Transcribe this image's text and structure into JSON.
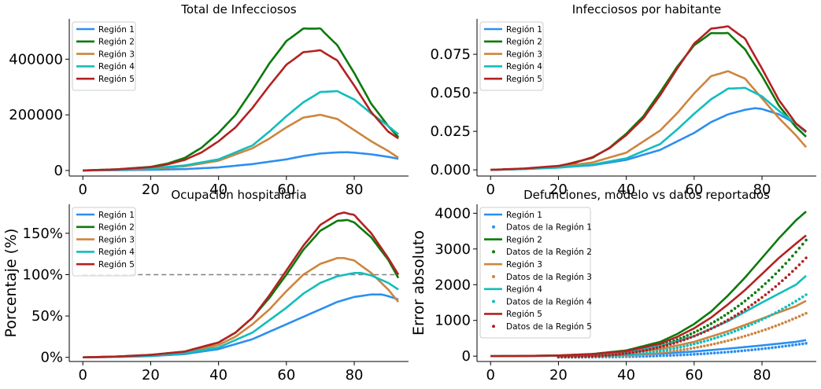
{
  "chart_data": [
    {
      "type": "line",
      "title": "Total de Infecciosos",
      "ylabel": "",
      "xlim": [
        -4,
        96
      ],
      "ylim": [
        -20000,
        545000
      ],
      "xticks": [
        0,
        20,
        40,
        60,
        80
      ],
      "yticks": [
        0,
        200000,
        400000
      ],
      "ytick_format": "int",
      "legend": "upper-left",
      "series": [
        {
          "name": "Región 1",
          "color": "#2b8ff0",
          "x": [
            0,
            10,
            20,
            30,
            40,
            50,
            60,
            65,
            70,
            75,
            78,
            80,
            85,
            90,
            93
          ],
          "y": [
            0,
            1000,
            2500,
            5000,
            11000,
            23000,
            40000,
            52000,
            61000,
            65000,
            65500,
            64000,
            58000,
            49000,
            42000
          ]
        },
        {
          "name": "Región 2",
          "color": "#0b7a0b",
          "x": [
            0,
            10,
            20,
            25,
            30,
            35,
            40,
            45,
            50,
            55,
            60,
            65,
            70,
            75,
            80,
            85,
            90,
            93
          ],
          "y": [
            0,
            4000,
            13000,
            25000,
            45000,
            82000,
            135000,
            200000,
            290000,
            385000,
            465000,
            510000,
            510000,
            450000,
            350000,
            240000,
            160000,
            120000
          ]
        },
        {
          "name": "Región 3",
          "color": "#cd853f",
          "x": [
            0,
            10,
            20,
            30,
            40,
            50,
            55,
            60,
            65,
            70,
            75,
            80,
            85,
            90,
            93
          ],
          "y": [
            0,
            2000,
            6000,
            15000,
            35000,
            80000,
            115000,
            155000,
            190000,
            200000,
            185000,
            145000,
            105000,
            70000,
            46000
          ]
        },
        {
          "name": "Región 4",
          "color": "#12bdbd",
          "x": [
            0,
            10,
            20,
            30,
            40,
            50,
            55,
            60,
            65,
            70,
            75,
            80,
            85,
            90,
            93
          ],
          "y": [
            0,
            2500,
            8000,
            18000,
            40000,
            90000,
            140000,
            195000,
            245000,
            282000,
            285000,
            255000,
            205000,
            160000,
            130000
          ]
        },
        {
          "name": "Región 5",
          "color": "#b22222",
          "x": [
            0,
            10,
            20,
            25,
            30,
            35,
            40,
            45,
            50,
            55,
            60,
            65,
            70,
            75,
            80,
            85,
            90,
            93
          ],
          "y": [
            0,
            4000,
            12000,
            22000,
            38000,
            65000,
            105000,
            155000,
            225000,
            305000,
            380000,
            425000,
            432000,
            395000,
            305000,
            210000,
            140000,
            115000
          ]
        }
      ]
    },
    {
      "type": "line",
      "title": "Infecciosos por habitante",
      "ylabel": "",
      "xlim": [
        -4,
        96
      ],
      "ylim": [
        -0.004,
        0.098
      ],
      "xticks": [
        0,
        20,
        40,
        60,
        80
      ],
      "yticks": [
        0.0,
        0.025,
        0.05,
        0.075
      ],
      "ytick_format": "3dec",
      "legend": "upper-left",
      "series": [
        {
          "name": "Región 1",
          "color": "#2b8ff0",
          "x": [
            0,
            10,
            20,
            30,
            40,
            50,
            60,
            65,
            70,
            75,
            78,
            80,
            85,
            90,
            93
          ],
          "y": [
            0,
            0.0006,
            0.0015,
            0.003,
            0.0065,
            0.013,
            0.024,
            0.031,
            0.036,
            0.039,
            0.04,
            0.0395,
            0.036,
            0.03,
            0.025
          ]
        },
        {
          "name": "Región 2",
          "color": "#0b7a0b",
          "x": [
            0,
            10,
            20,
            30,
            35,
            40,
            45,
            50,
            55,
            60,
            65,
            70,
            75,
            80,
            85,
            90,
            93
          ],
          "y": [
            0,
            0.0007,
            0.0023,
            0.0078,
            0.0143,
            0.0235,
            0.0347,
            0.0504,
            0.0669,
            0.0808,
            0.0887,
            0.0887,
            0.0782,
            0.0609,
            0.0417,
            0.0278,
            0.0215
          ]
        },
        {
          "name": "Región 3",
          "color": "#cd853f",
          "x": [
            0,
            10,
            20,
            30,
            40,
            50,
            55,
            60,
            65,
            70,
            75,
            80,
            85,
            90,
            93
          ],
          "y": [
            0,
            0.0006,
            0.0019,
            0.0048,
            0.0112,
            0.0256,
            0.0368,
            0.0496,
            0.0608,
            0.064,
            0.0592,
            0.0464,
            0.0336,
            0.0224,
            0.0147
          ]
        },
        {
          "name": "Región 4",
          "color": "#12bdbd",
          "x": [
            0,
            10,
            20,
            30,
            40,
            50,
            55,
            60,
            65,
            70,
            75,
            80,
            85,
            90,
            93
          ],
          "y": [
            0,
            0.0005,
            0.0015,
            0.0034,
            0.0075,
            0.0168,
            0.0262,
            0.0364,
            0.0458,
            0.0527,
            0.0532,
            0.0477,
            0.0383,
            0.0299,
            0.0243
          ]
        },
        {
          "name": "Región 5",
          "color": "#b22222",
          "x": [
            0,
            10,
            20,
            25,
            30,
            35,
            40,
            45,
            50,
            55,
            60,
            65,
            70,
            75,
            80,
            85,
            90,
            93
          ],
          "y": [
            0,
            0.0009,
            0.0026,
            0.0047,
            0.0082,
            0.014,
            0.0226,
            0.0334,
            0.0485,
            0.0657,
            0.0819,
            0.0916,
            0.0931,
            0.0851,
            0.0657,
            0.0453,
            0.0302,
            0.0248
          ]
        }
      ]
    },
    {
      "type": "line",
      "title": "Ocupación hospitalaria",
      "ylabel": "Porcentaje (%)",
      "xlim": [
        -4,
        96
      ],
      "ylim": [
        -0.05,
        1.85
      ],
      "xticks": [
        0,
        20,
        40,
        60,
        80
      ],
      "yticks": [
        0.0,
        0.5,
        1.0,
        1.5
      ],
      "ytick_format": "pct",
      "legend": "upper-left",
      "reference_line": {
        "y": 1.0,
        "x": [
          0,
          93
        ],
        "color": "#808080",
        "style": "dashed"
      },
      "series": [
        {
          "name": "Región 1",
          "color": "#2b8ff0",
          "x": [
            0,
            10,
            20,
            30,
            40,
            50,
            60,
            70,
            75,
            80,
            85,
            88,
            90,
            93
          ],
          "y": [
            0,
            0.005,
            0.015,
            0.04,
            0.1,
            0.22,
            0.4,
            0.58,
            0.67,
            0.73,
            0.76,
            0.76,
            0.74,
            0.7
          ]
        },
        {
          "name": "Región 2",
          "color": "#0b7a0b",
          "x": [
            0,
            10,
            20,
            30,
            40,
            45,
            50,
            55,
            60,
            65,
            70,
            75,
            78,
            80,
            85,
            90,
            93
          ],
          "y": [
            0,
            0.01,
            0.03,
            0.07,
            0.18,
            0.3,
            0.48,
            0.72,
            1.0,
            1.3,
            1.53,
            1.65,
            1.66,
            1.63,
            1.45,
            1.18,
            0.96
          ]
        },
        {
          "name": "Región 3",
          "color": "#cd853f",
          "x": [
            0,
            10,
            20,
            30,
            40,
            45,
            50,
            55,
            60,
            65,
            70,
            75,
            77,
            80,
            85,
            90,
            93
          ],
          "y": [
            0,
            0.008,
            0.025,
            0.06,
            0.15,
            0.25,
            0.4,
            0.58,
            0.8,
            1.0,
            1.13,
            1.2,
            1.2,
            1.17,
            1.02,
            0.82,
            0.67
          ]
        },
        {
          "name": "Región 4",
          "color": "#12bdbd",
          "x": [
            0,
            10,
            20,
            30,
            40,
            50,
            60,
            65,
            70,
            75,
            80,
            82,
            85,
            90,
            93
          ],
          "y": [
            0,
            0.006,
            0.02,
            0.05,
            0.12,
            0.3,
            0.6,
            0.77,
            0.9,
            0.98,
            1.02,
            1.02,
            0.99,
            0.9,
            0.82
          ]
        },
        {
          "name": "Región 5",
          "color": "#b22222",
          "x": [
            0,
            10,
            20,
            30,
            40,
            45,
            50,
            55,
            60,
            65,
            70,
            75,
            77,
            80,
            85,
            90,
            93
          ],
          "y": [
            0,
            0.01,
            0.03,
            0.07,
            0.18,
            0.3,
            0.48,
            0.75,
            1.05,
            1.35,
            1.6,
            1.73,
            1.75,
            1.72,
            1.5,
            1.2,
            1.0
          ]
        }
      ]
    },
    {
      "type": "line",
      "title": "Defunciones, modelo vs datos reportados",
      "ylabel": "Error absoluto",
      "xlim": [
        -4,
        96
      ],
      "ylim": [
        -150,
        4250
      ],
      "xticks": [
        0,
        20,
        40,
        60,
        80
      ],
      "yticks": [
        0,
        1000,
        2000,
        3000,
        4000
      ],
      "ytick_format": "int",
      "legend": "upper-left",
      "series": [
        {
          "name": "Región 1",
          "color": "#2b8ff0",
          "x": [
            0,
            10,
            20,
            30,
            40,
            50,
            60,
            70,
            80,
            90,
            93
          ],
          "y": [
            0,
            2,
            8,
            18,
            35,
            70,
            130,
            210,
            300,
            400,
            450
          ]
        },
        {
          "name": "Datos de la Región 1",
          "color": "#2b8ff0",
          "markers": true,
          "x_range": [
            20,
            93
          ],
          "y": [
            -30,
            360
          ]
        },
        {
          "name": "Región 2",
          "color": "#0b7a0b",
          "x": [
            0,
            10,
            20,
            30,
            40,
            50,
            55,
            60,
            65,
            70,
            75,
            80,
            85,
            90,
            93
          ],
          "y": [
            0,
            5,
            20,
            60,
            160,
            400,
            620,
            900,
            1250,
            1700,
            2200,
            2750,
            3300,
            3800,
            4050
          ]
        },
        {
          "name": "Datos de la Región 2",
          "color": "#0b7a0b",
          "markers": true,
          "x_range": [
            20,
            93
          ],
          "y": [
            -20,
            3250
          ]
        },
        {
          "name": "Región 3",
          "color": "#cd853f",
          "x": [
            0,
            10,
            20,
            30,
            40,
            50,
            60,
            70,
            80,
            90,
            93
          ],
          "y": [
            0,
            3,
            12,
            35,
            90,
            200,
            400,
            700,
            1050,
            1400,
            1550
          ]
        },
        {
          "name": "Datos de la Región 3",
          "color": "#cd853f",
          "markers": true,
          "x_range": [
            20,
            93
          ],
          "y": [
            -25,
            1200
          ]
        },
        {
          "name": "Región 4",
          "color": "#12bdbd",
          "x": [
            0,
            10,
            20,
            30,
            40,
            50,
            60,
            70,
            80,
            90,
            93
          ],
          "y": [
            0,
            4,
            15,
            45,
            120,
            280,
            560,
            980,
            1500,
            2000,
            2250
          ]
        },
        {
          "name": "Datos de la Región 4",
          "color": "#12bdbd",
          "markers": true,
          "x_range": [
            20,
            93
          ],
          "y": [
            -25,
            1720
          ]
        },
        {
          "name": "Región 5",
          "color": "#b22222",
          "x": [
            0,
            10,
            20,
            30,
            40,
            50,
            55,
            60,
            65,
            70,
            75,
            80,
            85,
            90,
            93
          ],
          "y": [
            0,
            5,
            18,
            55,
            140,
            350,
            540,
            780,
            1080,
            1450,
            1850,
            2300,
            2750,
            3150,
            3380
          ]
        },
        {
          "name": "Datos de la Región 5",
          "color": "#b22222",
          "markers": true,
          "x_range": [
            20,
            93
          ],
          "y": [
            -20,
            2750
          ]
        }
      ]
    }
  ]
}
